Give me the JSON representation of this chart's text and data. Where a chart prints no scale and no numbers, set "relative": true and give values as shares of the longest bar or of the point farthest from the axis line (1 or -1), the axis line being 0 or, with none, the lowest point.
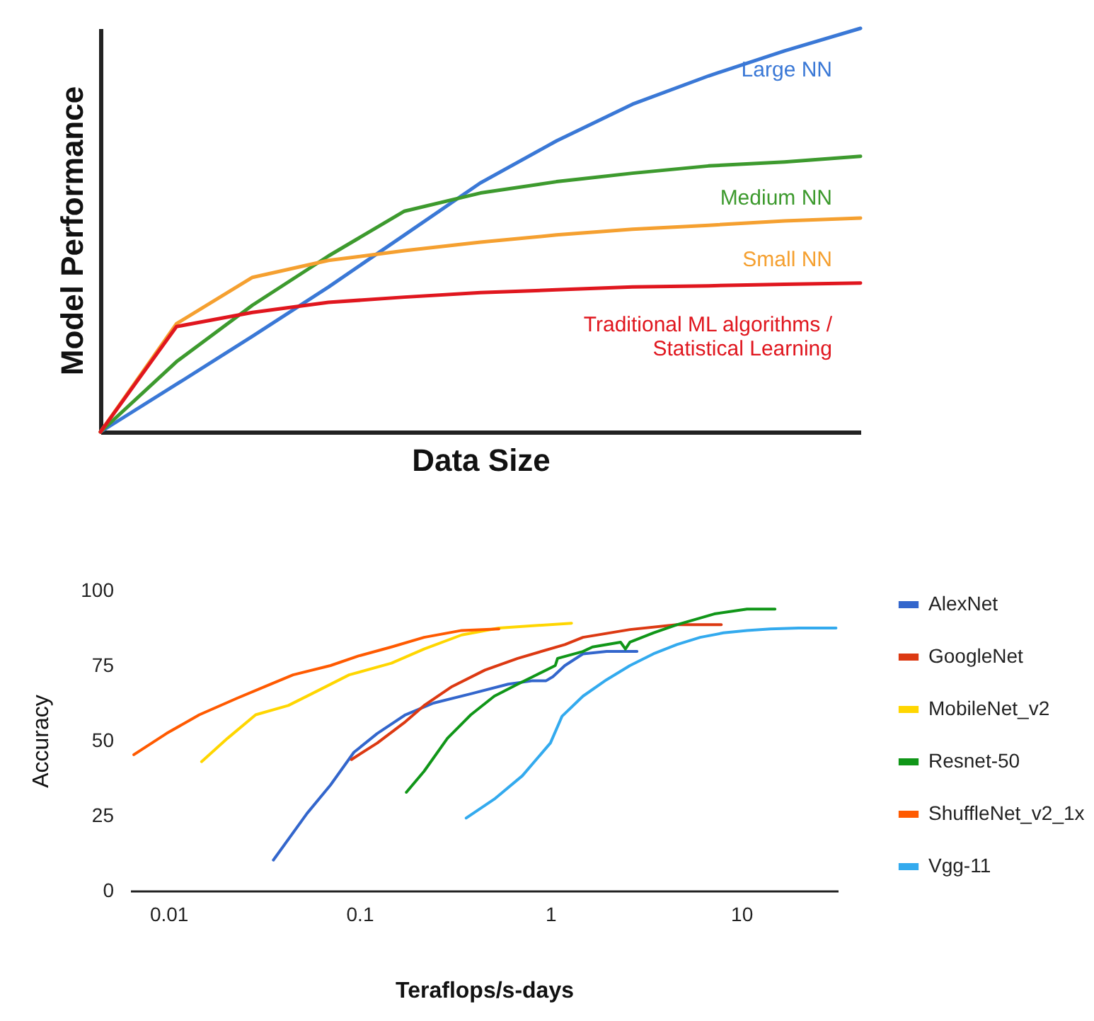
{
  "chart_data": [
    {
      "type": "line",
      "relative": true,
      "xlabel": "Data Size",
      "ylabel": "Model Performance",
      "tick_labels": false,
      "legend": false,
      "categories": [
        null,
        null,
        null,
        null,
        null,
        null,
        null,
        null,
        null,
        null,
        null
      ],
      "series": [
        {
          "name": "Large NN",
          "color": "#3a78d6",
          "values": [
            0,
            0.118,
            0.237,
            0.359,
            0.488,
            0.617,
            0.721,
            0.812,
            0.882,
            0.944,
            1
          ]
        },
        {
          "name": "Medium NN",
          "color": "#3d9a2e",
          "values": [
            0,
            0.174,
            0.314,
            0.436,
            0.547,
            0.592,
            0.62,
            0.641,
            0.659,
            0.669,
            0.683
          ]
        },
        {
          "name": "Small NN",
          "color": "#f5a030",
          "values": [
            0,
            0.268,
            0.383,
            0.425,
            0.449,
            0.47,
            0.488,
            0.502,
            0.512,
            0.523,
            0.53
          ]
        },
        {
          "name": "Traditional ML algorithms / Statistical Learning",
          "color": "#e0161e",
          "values": [
            0,
            0.261,
            0.296,
            0.321,
            0.334,
            0.345,
            0.352,
            0.359,
            0.362,
            0.366,
            0.369
          ]
        }
      ]
    },
    {
      "type": "line",
      "xlabel": "Teraflops/s-days",
      "ylabel": "Accuracy",
      "log": "x",
      "legend": "right",
      "xlim": [
        0.0063,
        32
      ],
      "xticks": [
        0.01,
        0.1,
        1,
        10
      ],
      "ylim": [
        0,
        100
      ],
      "yticks": [
        0,
        25,
        50,
        75,
        100
      ],
      "series": [
        {
          "name": "AlexNet",
          "color": "#3366cc",
          "x": [
            0.0354,
            0.0532,
            0.0705,
            0.0935,
            0.124,
            0.174,
            0.244,
            0.383,
            0.601,
            0.798,
            0.946,
            1.03,
            1.19,
            1.48,
            1.97,
            2.84
          ],
          "values": [
            10.2,
            25.8,
            35.2,
            46.1,
            52.4,
            58.6,
            62.5,
            65.6,
            68.8,
            69.9,
            69.9,
            71.3,
            75,
            78.9,
            79.7,
            79.7
          ]
        },
        {
          "name": "GoogleNet",
          "color": "#dc3912",
          "x": [
            0.0908,
            0.124,
            0.174,
            0.218,
            0.305,
            0.454,
            0.674,
            1.19,
            1.48,
            2.61,
            4.59,
            7.85
          ],
          "values": [
            43.7,
            49.2,
            56.3,
            61.7,
            68,
            73.5,
            77.4,
            82,
            84.4,
            87,
            88.6,
            88.6
          ]
        },
        {
          "name": "MobileNet_v2",
          "color": "#ffd600",
          "x": [
            0.0149,
            0.0204,
            0.0286,
            0.0424,
            0.0562,
            0.0883,
            0.147,
            0.218,
            0.343,
            0.537,
            1.29
          ],
          "values": [
            43,
            50.8,
            58.6,
            61.7,
            65.6,
            71.9,
            75.8,
            80.5,
            85.2,
            87.5,
            89.1
          ]
        },
        {
          "name": "Resnet-50",
          "color": "#109618",
          "x": [
            0.176,
            0.218,
            0.289,
            0.383,
            0.508,
            0.674,
            0.798,
            1.06,
            1.09,
            1.48,
            1.66,
            2.33,
            2.47,
            2.61,
            3.46,
            4.59,
            7.21,
            10.7,
            15
          ],
          "values": [
            32.8,
            39.8,
            50.8,
            58.6,
            64.8,
            68.8,
            71.1,
            75,
            77.4,
            79.7,
            81.2,
            82.8,
            80.5,
            82.8,
            85.9,
            88.6,
            92.2,
            93.8,
            93.8
          ]
        },
        {
          "name": "ShuffleNet_v2_1x",
          "color": "#ff5a00",
          "x": [
            0.00658,
            0.00977,
            0.0145,
            0.0228,
            0.032,
            0.0449,
            0.0705,
            0.0989,
            0.147,
            0.218,
            0.343,
            0.537
          ],
          "values": [
            45.3,
            52.4,
            58.6,
            64.1,
            68,
            71.9,
            75,
            78.2,
            81.2,
            84.4,
            86.7,
            87.2
          ]
        },
        {
          "name": "Vgg-11",
          "color": "#33aaee",
          "x": [
            0.362,
            0.508,
            0.713,
            1,
            1.15,
            1.48,
            1.97,
            2.61,
            3.46,
            4.59,
            6.09,
            8.07,
            10.7,
            14.2,
            19.9,
            31.3
          ],
          "values": [
            24.2,
            30.5,
            38.3,
            49.2,
            58.1,
            64.8,
            70.3,
            75,
            78.9,
            82,
            84.4,
            85.9,
            86.7,
            87.2,
            87.5,
            87.5
          ]
        }
      ]
    }
  ]
}
